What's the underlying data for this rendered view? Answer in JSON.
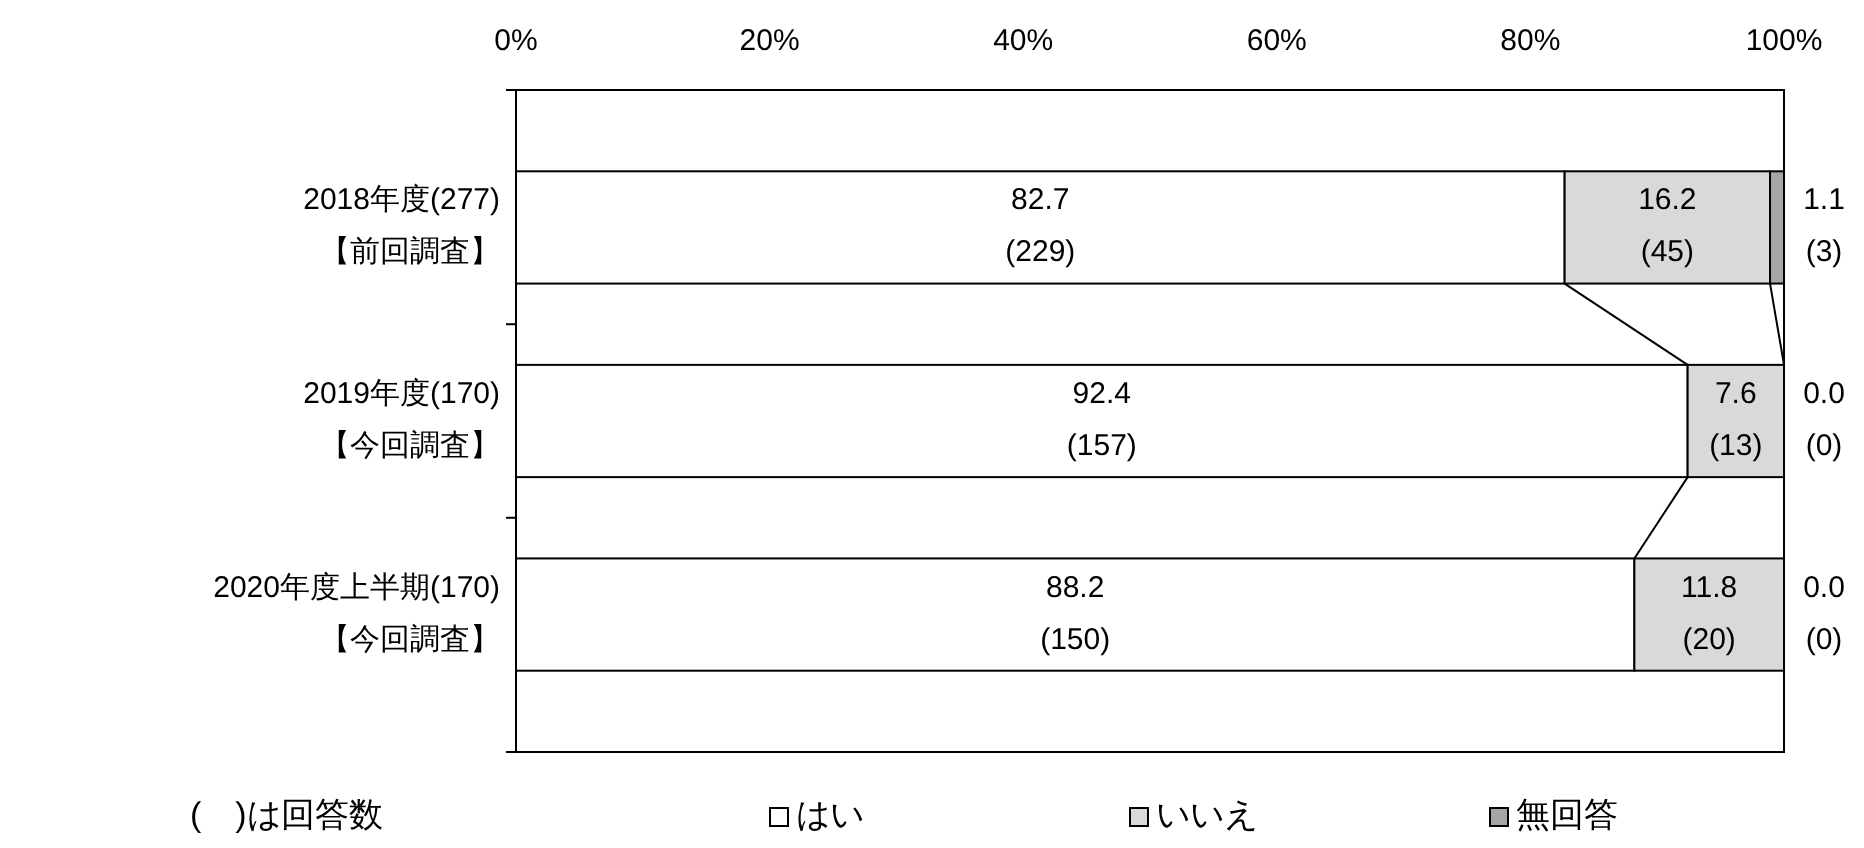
{
  "chart_data": {
    "type": "bar",
    "orientation": "horizontal",
    "stacked": true,
    "categories": [
      "2018年度(277)\n【前回調査】",
      "2019年度(170)\n【今回調査】",
      "2020年度上半期(170)\n【今回調査】"
    ],
    "series": [
      {
        "name": "はい",
        "color": "#ffffff",
        "values": [
          82.7,
          92.4,
          88.2
        ],
        "value_labels": [
          "82.7\n(229)",
          "92.4\n(157)",
          "88.2\n(150)"
        ]
      },
      {
        "name": "いいえ",
        "color": "#d9d9d9",
        "values": [
          16.2,
          7.6,
          11.8
        ],
        "value_labels": [
          "16.2\n(45)",
          "7.6\n(13)",
          "11.8\n(20)"
        ]
      },
      {
        "name": "無回答",
        "color": "#a6a6a6",
        "values": [
          1.1,
          0,
          0
        ],
        "value_labels": [
          "1.1\n(3)",
          "0.0\n(0)",
          "0.0\n(0)"
        ]
      }
    ],
    "xlim": [
      0,
      100
    ],
    "xticks": [
      {
        "value": 0,
        "label": "0%"
      },
      {
        "value": 20,
        "label": "20%"
      },
      {
        "value": 40,
        "label": "40%"
      },
      {
        "value": 60,
        "label": "60%"
      },
      {
        "value": 80,
        "label": "80%"
      },
      {
        "value": 100,
        "label": "100%"
      }
    ],
    "legend": "bottom",
    "grid": false,
    "annotations": [
      "(　)は回答数"
    ]
  }
}
